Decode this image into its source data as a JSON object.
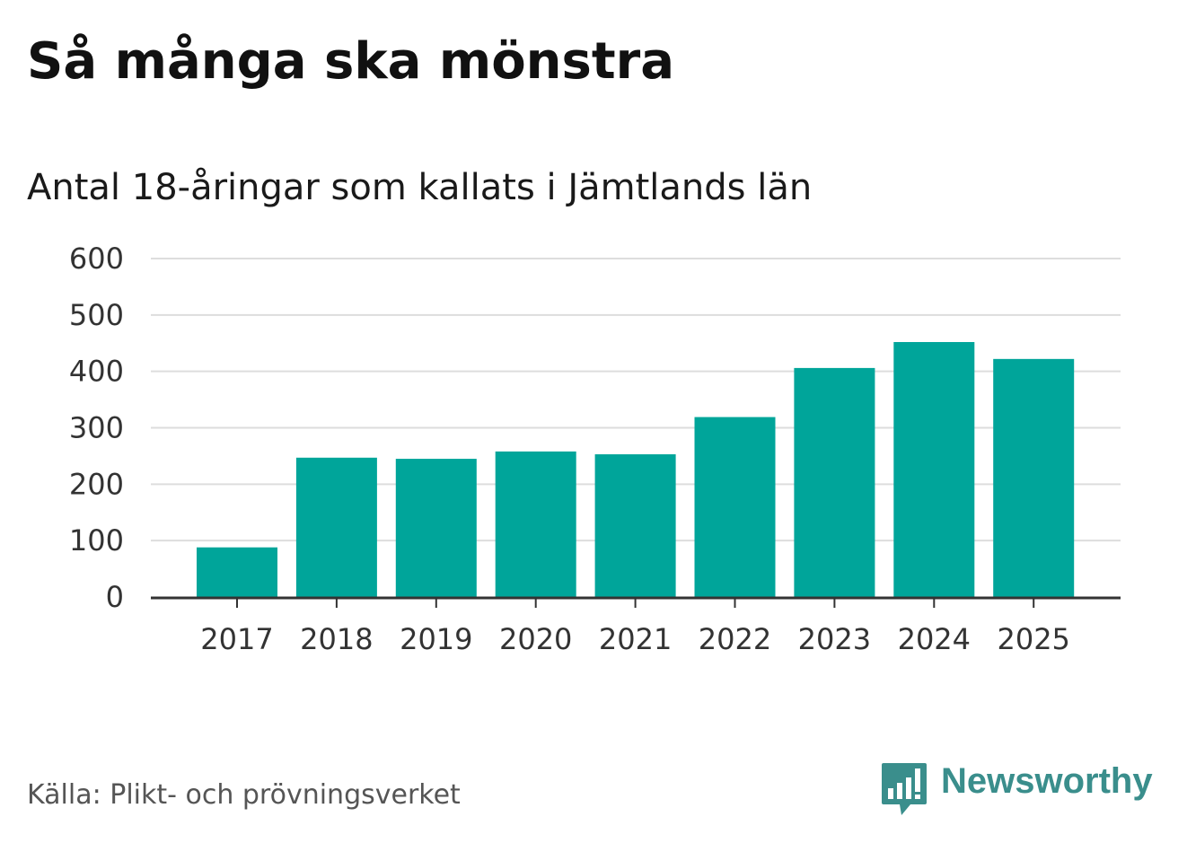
{
  "title": "Så många ska mönstra",
  "subtitle": "Antal 18-åringar som kallats i Jämtlands län",
  "source": "Källa: Plikt- och prövningsverket",
  "logo": {
    "text": "Newsworthy",
    "icon": "newsworthy-bar-chart-icon"
  },
  "colors": {
    "bar": "#00a59a",
    "grid": "#dddddd",
    "axis": "#333333",
    "logo": "#3a8e8c"
  },
  "chart_data": {
    "type": "bar",
    "title": "Så många ska mönstra",
    "subtitle": "Antal 18-åringar som kallats i Jämtlands län",
    "xlabel": "",
    "ylabel": "",
    "categories": [
      "2017",
      "2018",
      "2019",
      "2020",
      "2021",
      "2022",
      "2023",
      "2024",
      "2025"
    ],
    "values": [
      88,
      247,
      245,
      258,
      253,
      319,
      406,
      452,
      422
    ],
    "ylim": [
      0,
      600
    ],
    "yticks": [
      "0",
      "100",
      "200",
      "300",
      "400",
      "500",
      "600"
    ],
    "grid": true,
    "legend": "none"
  }
}
